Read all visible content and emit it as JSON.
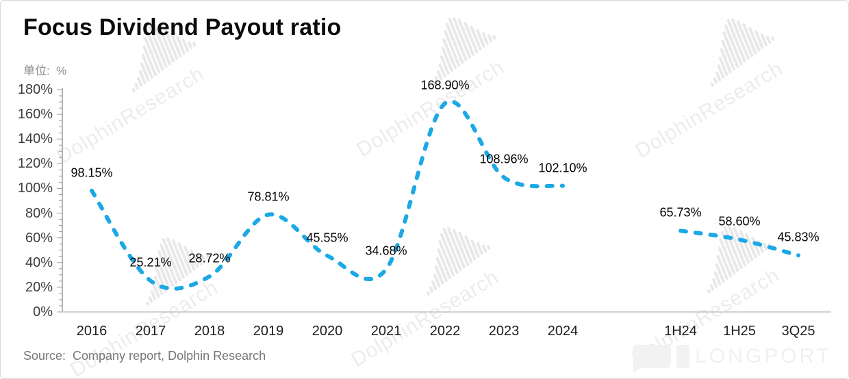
{
  "header": {
    "title": "Focus Dividend Payout ratio",
    "unit_label": "单位:  %"
  },
  "watermark": {
    "text": "DolphinResearch"
  },
  "footer": {
    "source": "Source:  Company report, Dolphin Research",
    "brand": "LONGPORT"
  },
  "chart_data": {
    "type": "line",
    "title": "Focus Dividend Payout ratio",
    "unit": "%",
    "line_color": "#1BA9E5",
    "line_style": "dashed",
    "grid": false,
    "legend": false,
    "ylim": [
      0,
      180
    ],
    "ytick_step": 20,
    "ytick_labels": [
      "0%",
      "20%",
      "40%",
      "60%",
      "80%",
      "100%",
      "120%",
      "140%",
      "160%",
      "180%"
    ],
    "categories": [
      "2016",
      "2017",
      "2018",
      "2019",
      "2020",
      "2021",
      "2022",
      "2023",
      "2024",
      "",
      "1H24",
      "1H25",
      "3Q25"
    ],
    "series": [
      {
        "name": "annual-payout-ratio",
        "x_index": [
          0,
          1,
          2,
          3,
          4,
          5,
          6,
          7,
          8
        ],
        "values": [
          98.15,
          25.21,
          28.72,
          78.81,
          45.55,
          34.68,
          168.9,
          108.96,
          102.1
        ],
        "labels": [
          "98.15%",
          "25.21%",
          "28.72%",
          "78.81%",
          "45.55%",
          "34.68%",
          "168.90%",
          "108.96%",
          "102.10%"
        ]
      },
      {
        "name": "interim-payout-ratio",
        "x_index": [
          10,
          11,
          12
        ],
        "values": [
          65.73,
          58.6,
          45.83
        ],
        "labels": [
          "65.73%",
          "58.60%",
          "45.83%"
        ]
      }
    ]
  }
}
